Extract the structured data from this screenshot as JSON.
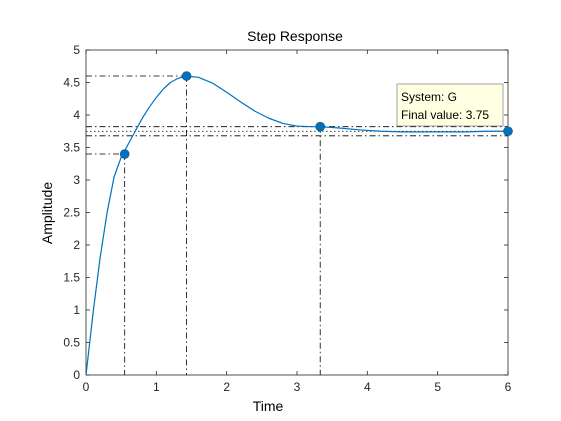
{
  "chart_data": {
    "type": "line",
    "title": "Step Response",
    "xlabel": "Time",
    "ylabel": "Amplitude",
    "xlim": [
      0,
      6
    ],
    "ylim": [
      0,
      5
    ],
    "xticks": [
      0,
      1,
      2,
      3,
      4,
      5,
      6
    ],
    "yticks": [
      0,
      0.5,
      1,
      1.5,
      2,
      2.5,
      3,
      3.5,
      4,
      4.5,
      5
    ],
    "grid": false,
    "series": [
      {
        "color": "#0072bd",
        "x": [
          0,
          0.1,
          0.2,
          0.3,
          0.4,
          0.5,
          0.6,
          0.7,
          0.8,
          0.9,
          1.0,
          1.1,
          1.2,
          1.3,
          1.43,
          1.6,
          1.8,
          2.0,
          2.2,
          2.4,
          2.6,
          2.8,
          3.0,
          3.2,
          3.33,
          3.6,
          3.9,
          4.2,
          4.5,
          4.8,
          5.1,
          5.4,
          5.7,
          6.0
        ],
        "y": [
          0,
          0.95,
          1.8,
          2.5,
          3.05,
          3.35,
          3.55,
          3.75,
          3.95,
          4.12,
          4.27,
          4.4,
          4.5,
          4.56,
          4.6,
          4.58,
          4.49,
          4.35,
          4.2,
          4.06,
          3.95,
          3.87,
          3.83,
          3.82,
          3.82,
          3.8,
          3.77,
          3.75,
          3.74,
          3.74,
          3.74,
          3.74,
          3.75,
          3.75
        ]
      }
    ],
    "characteristic_points": [
      {
        "x": 0.55,
        "y": 3.4
      },
      {
        "x": 1.43,
        "y": 4.6
      },
      {
        "x": 3.33,
        "y": 3.82
      },
      {
        "x": 6.0,
        "y": 3.75
      }
    ],
    "reference_lines": {
      "horizontal_dashdot": [
        4.6,
        3.4,
        3.82,
        3.68
      ],
      "horizontal_dotted": [
        3.75
      ],
      "vertical_dashdot": [
        0.55,
        1.43,
        3.33
      ]
    },
    "datatip": {
      "line1": "System: G",
      "line2": "Final value: 3.75"
    },
    "colors": {
      "line": "#0072bd",
      "marker": "#0072bd",
      "axes": "#262626",
      "reference": "#000000",
      "datatip_bg": "#ffffe1"
    }
  }
}
